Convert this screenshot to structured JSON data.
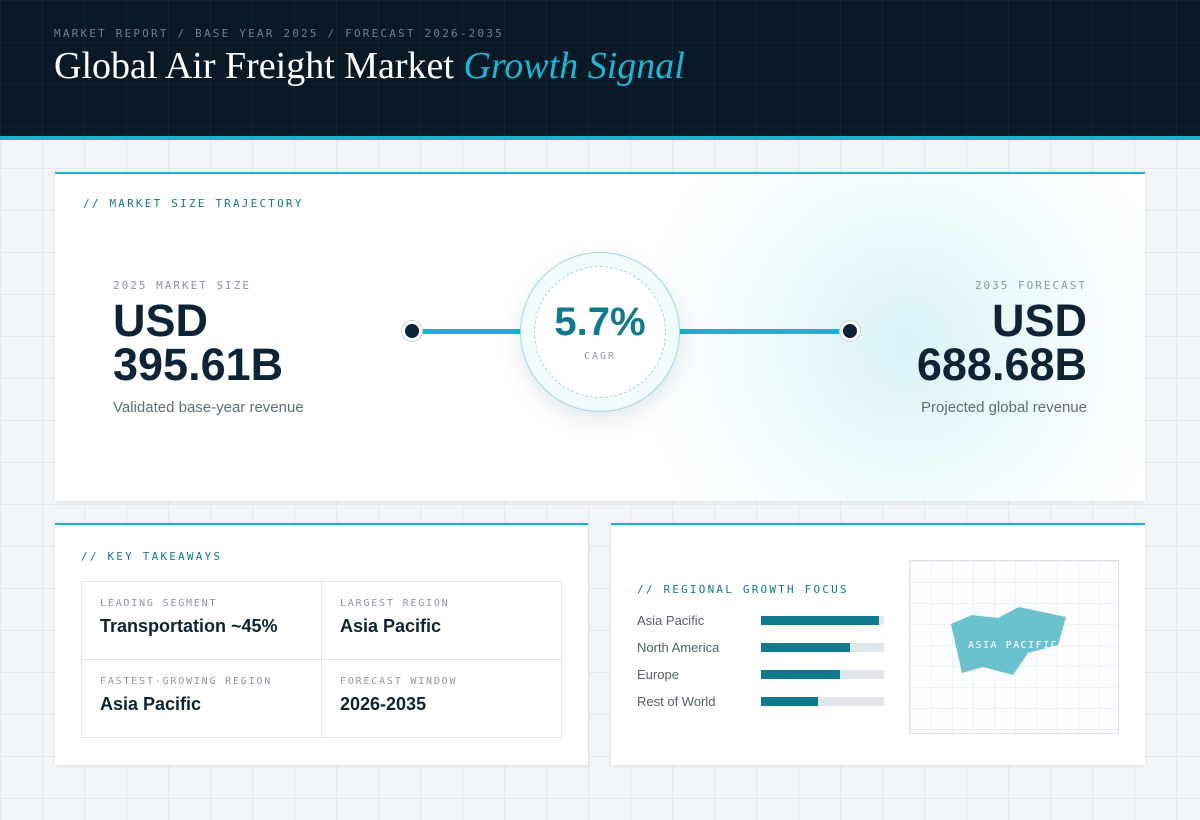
{
  "header": {
    "breadcrumb": "MARKET REPORT / BASE YEAR 2025 / FORECAST 2026-2035",
    "title_main": "Global Air Freight Market",
    "title_accent": "Growth Signal"
  },
  "trajectory": {
    "label": "// MARKET SIZE TRAJECTORY",
    "start": {
      "caption": "2025 MARKET SIZE",
      "value_line1": "USD",
      "value_line2": "395.61B",
      "subtitle": "Validated base-year revenue"
    },
    "cagr": {
      "value": "5.7%",
      "label": "CAGR"
    },
    "end": {
      "caption": "2035 FORECAST",
      "value_line1": "USD",
      "value_line2": "688.68B",
      "subtitle": "Projected global revenue"
    }
  },
  "takeaways": {
    "label": "// KEY TAKEAWAYS",
    "items": [
      {
        "caption": "LEADING SEGMENT",
        "value": "Transportation ~45%"
      },
      {
        "caption": "LARGEST REGION",
        "value": "Asia Pacific"
      },
      {
        "caption": "FASTEST-GROWING REGION",
        "value": "Asia Pacific"
      },
      {
        "caption": "FORECAST WINDOW",
        "value": "2026-2035"
      }
    ]
  },
  "regional": {
    "label": "// REGIONAL GROWTH FOCUS",
    "regions": [
      {
        "name": "Asia Pacific",
        "level": 0.96
      },
      {
        "name": "North America",
        "level": 0.72
      },
      {
        "name": "Europe",
        "level": 0.64
      },
      {
        "name": "Rest of World",
        "level": 0.46
      }
    ],
    "map_label": "ASIA PACIFIC"
  },
  "colors": {
    "header_bg": "#0a1926",
    "accent": "#17b3cf",
    "teal": "#0e7a8b",
    "navy": "#0d2336",
    "map_fill": "#6cc1cf"
  }
}
